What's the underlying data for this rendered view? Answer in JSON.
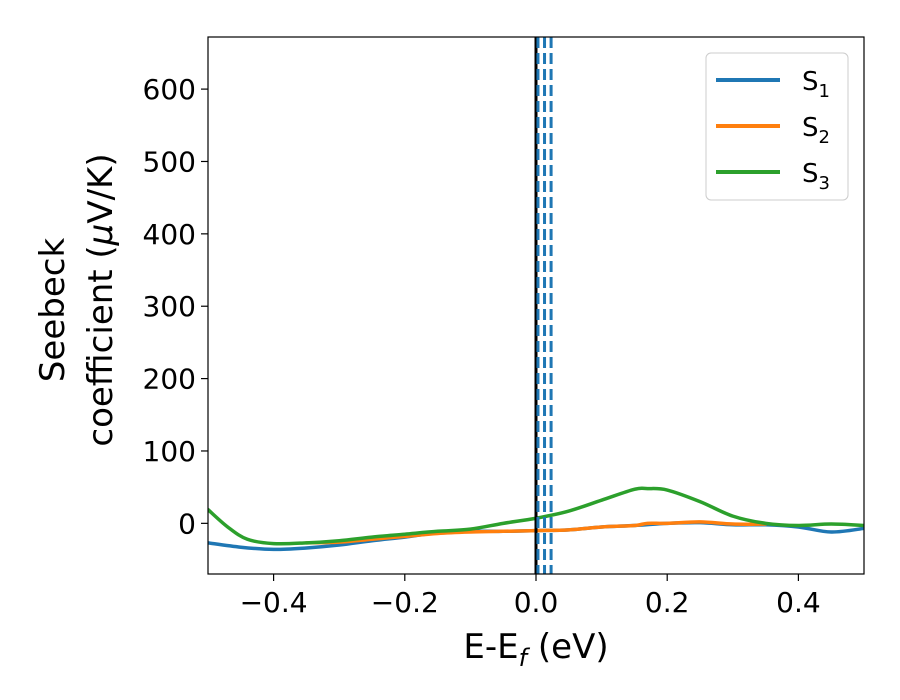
{
  "chart_data": {
    "type": "line",
    "xlabel": {
      "main": "E-E",
      "sub": "f",
      "tail": " (eV)"
    },
    "ylabel": {
      "line1": "Seebeck",
      "line2_main": "coefficient  (",
      "line2_mu": "μ",
      "line2_tail": "V/K)"
    },
    "xlim": [
      -0.5,
      0.5
    ],
    "ylim": [
      -70,
      672
    ],
    "xticks": [
      -0.4,
      -0.2,
      0.0,
      0.2,
      0.4
    ],
    "xtick_labels": [
      "−0.4",
      "−0.2",
      "0.0",
      "0.2",
      "0.4"
    ],
    "yticks": [
      0,
      100,
      200,
      300,
      400,
      500,
      600
    ],
    "ytick_labels": [
      "0",
      "100",
      "200",
      "300",
      "400",
      "500",
      "600"
    ],
    "legend_position": "top-right",
    "grid": false,
    "vertical_lines": [
      {
        "x": 0.0,
        "color": "#000000",
        "style": "solid"
      },
      {
        "x": 0.003,
        "color": "#1f77b4",
        "style": "dashed"
      },
      {
        "x": 0.013,
        "color": "#1f77b4",
        "style": "dashed"
      },
      {
        "x": 0.023,
        "color": "#1f77b4",
        "style": "dashed"
      }
    ],
    "series": [
      {
        "name": "S",
        "sub": "1",
        "color": "#1f77b4",
        "x": [
          -0.5,
          -0.45,
          -0.4,
          -0.35,
          -0.3,
          -0.25,
          -0.2,
          -0.15,
          -0.1,
          -0.05,
          0.0,
          0.05,
          0.1,
          0.15,
          0.2,
          0.25,
          0.3,
          0.35,
          0.4,
          0.45,
          0.5
        ],
        "y": [
          -27,
          -33,
          -36,
          -34,
          -30,
          -24,
          -19,
          -13,
          -11,
          -11,
          -10,
          -9,
          -5,
          -3,
          0,
          1,
          -2,
          -2,
          -5,
          -12,
          -7
        ]
      },
      {
        "name": "S",
        "sub": "2",
        "color": "#ff7f0e",
        "x": [
          -0.35,
          -0.3,
          -0.25,
          -0.2,
          -0.15,
          -0.1,
          -0.05,
          0.0,
          0.05,
          0.1,
          0.15,
          0.17,
          0.2,
          0.25,
          0.3,
          0.35
        ],
        "y": [
          -27,
          -26,
          -22,
          -18,
          -14,
          -12,
          -11,
          -10,
          -9,
          -5,
          -3,
          0,
          0,
          2,
          -1,
          -1
        ]
      },
      {
        "name": "S",
        "sub": "3",
        "color": "#2ca02c",
        "x": [
          -0.5,
          -0.47,
          -0.44,
          -0.4,
          -0.35,
          -0.3,
          -0.25,
          -0.2,
          -0.15,
          -0.1,
          -0.05,
          0.0,
          0.05,
          0.1,
          0.15,
          0.17,
          0.2,
          0.25,
          0.3,
          0.35,
          0.4,
          0.45,
          0.5
        ],
        "y": [
          19,
          -5,
          -22,
          -28,
          -27,
          -24,
          -19,
          -15,
          -11,
          -8,
          0,
          7,
          17,
          32,
          47,
          48,
          46,
          30,
          10,
          0,
          -3,
          -1,
          -3
        ]
      }
    ]
  }
}
